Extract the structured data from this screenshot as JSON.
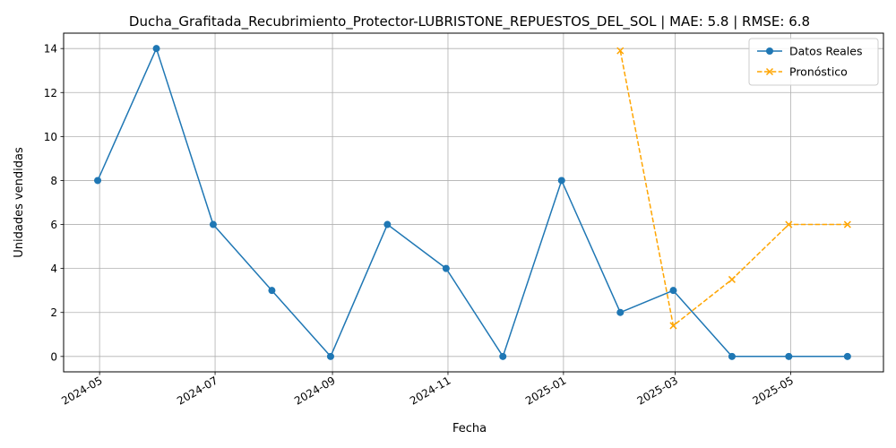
{
  "chart_data": {
    "type": "line",
    "title": "Ducha_Grafitada_Recubrimiento_Protector-LUBRISTONE_REPUESTOS_DEL_SOL | MAE: 5.8 | RMSE: 6.8",
    "xlabel": "Fecha",
    "ylabel": "Unidades vendidas",
    "ylim": [
      -0.7,
      14.7
    ],
    "xlim": [
      "2024-04-12",
      "2025-06-19"
    ],
    "yticks": [
      0,
      2,
      4,
      6,
      8,
      10,
      12,
      14
    ],
    "xticks": [
      "2024-05",
      "2024-07",
      "2024-09",
      "2024-11",
      "2025-01",
      "2025-03",
      "2025-05"
    ],
    "xtick_dates": [
      "2024-05-01",
      "2024-07-01",
      "2024-09-01",
      "2024-11-01",
      "2025-01-01",
      "2025-03-01",
      "2025-05-01"
    ],
    "grid": true,
    "legend_position": "top-right",
    "series": [
      {
        "name": "Datos Reales",
        "color": "#1f77b4",
        "style": "solid",
        "marker": "circle",
        "x": [
          "2024-04-30",
          "2024-05-31",
          "2024-06-30",
          "2024-07-31",
          "2024-08-31",
          "2024-09-30",
          "2024-10-31",
          "2024-11-30",
          "2024-12-31",
          "2025-01-31",
          "2025-02-28",
          "2025-03-31",
          "2025-04-30",
          "2025-05-31"
        ],
        "values": [
          8,
          14,
          6,
          3,
          0,
          6,
          4,
          0,
          8,
          2,
          3,
          0,
          0,
          0
        ]
      },
      {
        "name": "Pronóstico",
        "color": "#ffa500",
        "style": "dashed",
        "marker": "x",
        "x": [
          "2025-01-31",
          "2025-02-28",
          "2025-03-31",
          "2025-04-30",
          "2025-05-31"
        ],
        "values": [
          13.9,
          1.4,
          3.5,
          6.0,
          6.0
        ]
      }
    ]
  }
}
